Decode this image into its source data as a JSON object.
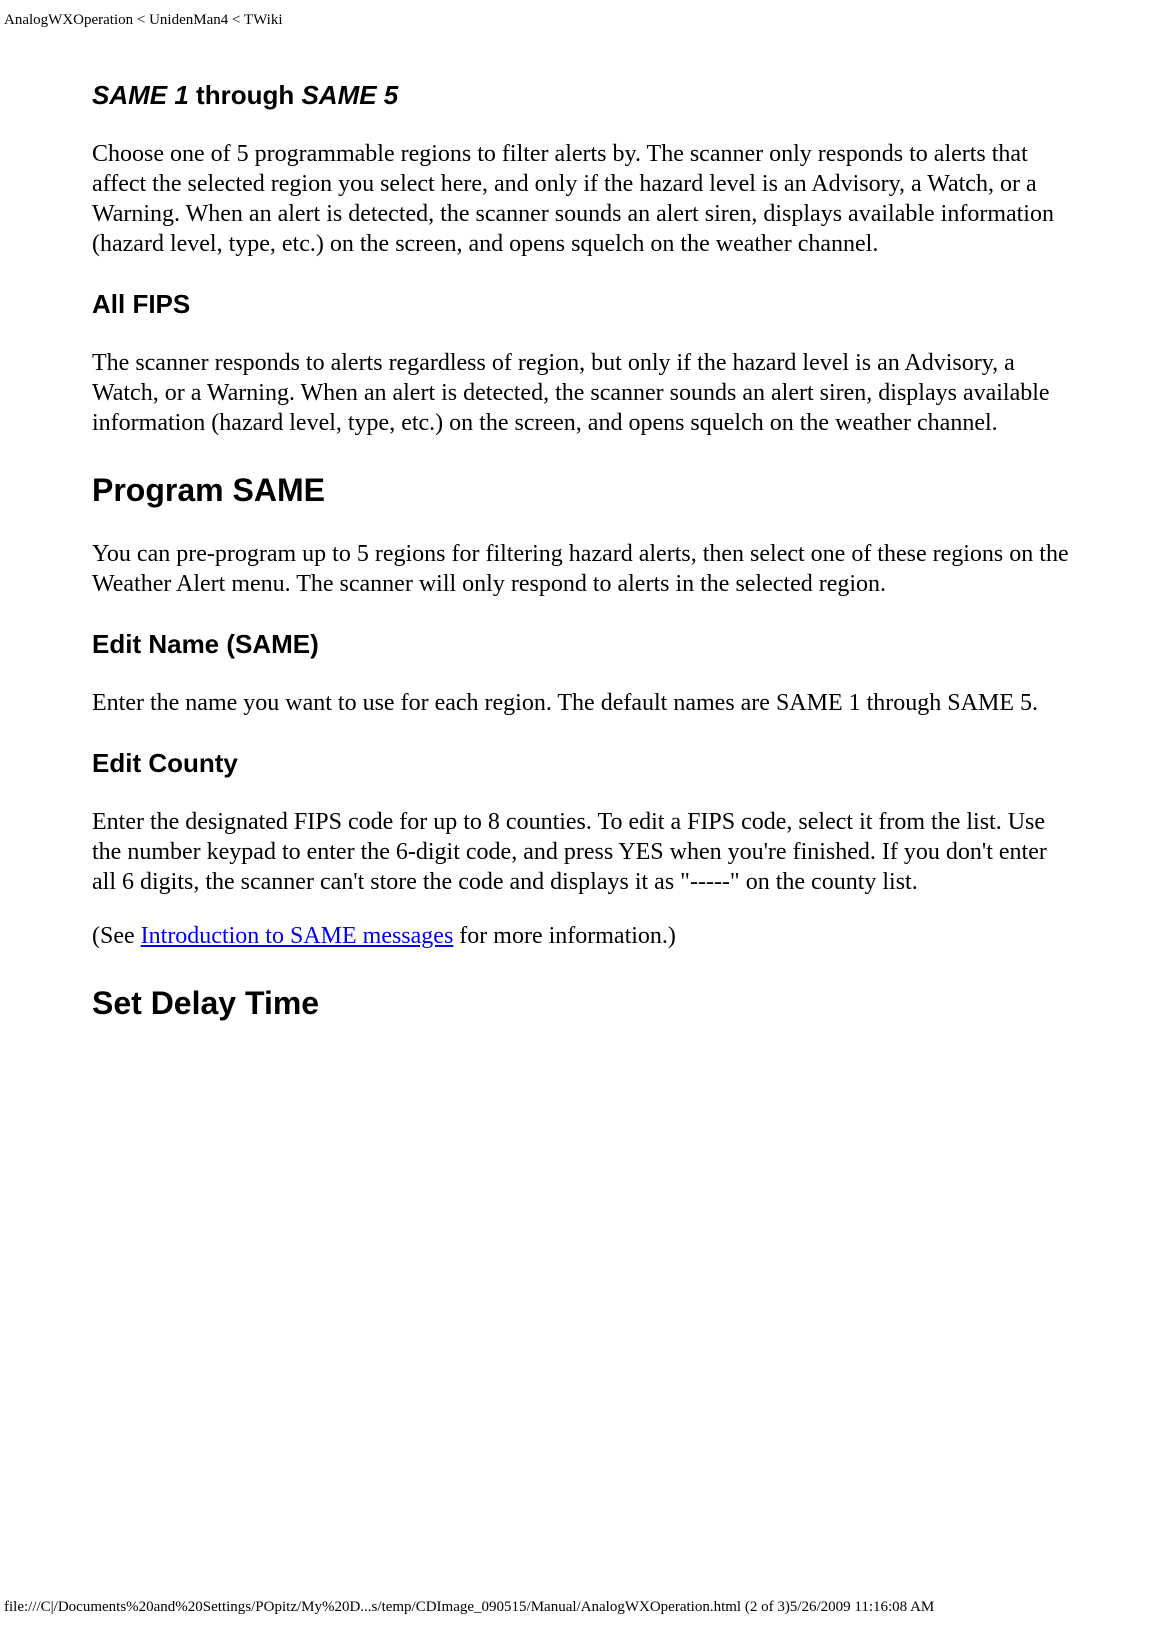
{
  "header": {
    "breadcrumb": "AnalogWXOperation < UnidenMan4 < TWiki"
  },
  "sections": {
    "same15": {
      "title_part1": "SAME 1",
      "title_part2": " through ",
      "title_part3": "SAME 5",
      "body": "Choose one of 5 programmable regions to filter alerts by. The scanner only responds to alerts that affect the selected region you select here, and only if the hazard level is an Advisory, a Watch, or a Warning. When an alert is detected, the scanner sounds an alert siren, displays available information (hazard level, type, etc.) on the screen, and opens squelch on the weather channel."
    },
    "allfips": {
      "title": "All FIPS",
      "body": "The scanner responds to alerts regardless of region, but only if the hazard level is an Advisory, a Watch, or a Warning. When an alert is detected, the scanner sounds an alert siren, displays available information (hazard level, type, etc.) on the screen, and opens squelch on the weather channel."
    },
    "programsame": {
      "title": "Program SAME",
      "body": "You can pre-program up to 5 regions for filtering hazard alerts, then select one of these regions on the Weather Alert menu. The scanner will only respond to alerts in the selected region."
    },
    "editname": {
      "title": "Edit Name (SAME)",
      "body": "Enter the name you want to use for each region. The default names are SAME 1 through SAME 5."
    },
    "editcounty": {
      "title": "Edit County",
      "body": "Enter the designated FIPS code for up to 8 counties. To edit a FIPS code, select it from the list. Use the number keypad to enter the 6-digit code, and press YES when you're finished. If you don't enter all 6 digits, the scanner can't store the code and displays it as \"-----\" on the county list.",
      "see_prefix": "(See ",
      "see_link": "Introduction to SAME messages",
      "see_suffix": " for more information.)"
    },
    "setdelay": {
      "title": "Set Delay Time"
    }
  },
  "footer": {
    "path": "file:///C|/Documents%20and%20Settings/POpitz/My%20D...s/temp/CDImage_090515/Manual/AnalogWXOperation.html (2 of 3)5/26/2009 11:16:08 AM"
  }
}
